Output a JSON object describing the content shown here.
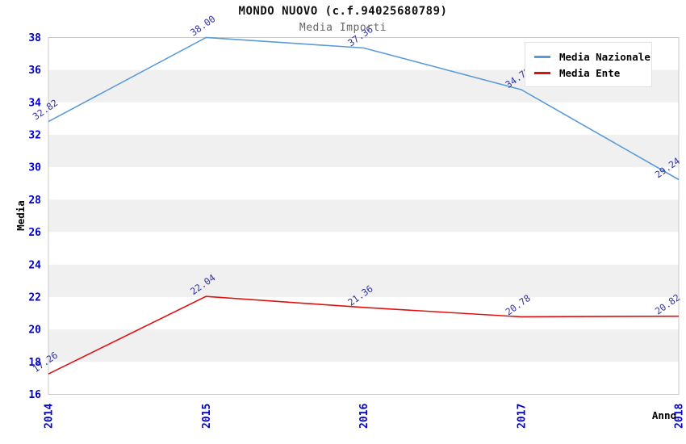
{
  "chart": {
    "title": "MONDO NUOVO (c.f.94025680789)",
    "subtitle": "Media Importi"
  },
  "chart_data": {
    "type": "line",
    "title": "MONDO NUOVO (c.f.94025680789)",
    "subtitle": "Media Importi",
    "xlabel": "Anno",
    "ylabel": "Media",
    "categories": [
      "2014",
      "2015",
      "2016",
      "2017",
      "2018"
    ],
    "series": [
      {
        "name": "Media Nazionale",
        "color": "#5b9bd5",
        "values": [
          32.82,
          38.0,
          37.36,
          34.79,
          29.24
        ]
      },
      {
        "name": "Media Ente",
        "color": "#e01010",
        "values": [
          17.26,
          22.04,
          21.36,
          20.78,
          20.82
        ]
      }
    ],
    "ylim": [
      16,
      38
    ],
    "ytick_step": 2,
    "legend_position": "upper right",
    "grid": "alternating-horizontal-bands",
    "style": {
      "band_color": "#f0f0f0",
      "plot_border_color": "#c8c8c8",
      "tick_label_color": "#0000cc",
      "data_label_color": "#333399",
      "axis_title_color": "#000000",
      "subtitle_color": "#666666"
    }
  }
}
